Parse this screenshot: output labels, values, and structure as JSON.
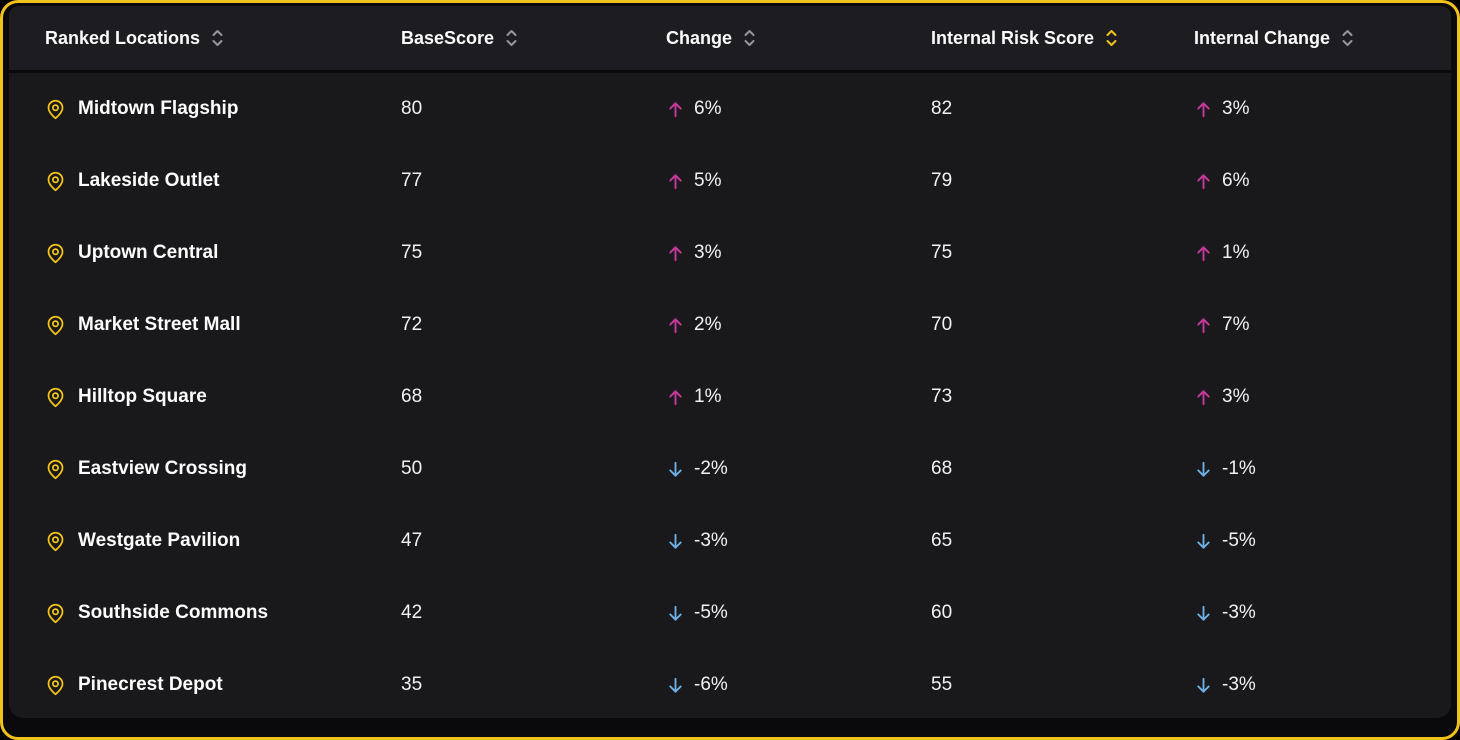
{
  "card": {
    "border_color": "#f2c21c",
    "panel_background": "#19191c",
    "header_background": "#1d1d21"
  },
  "colors": {
    "accent_yellow": "#f5c518",
    "up_arrow_pink": "#c9399e",
    "down_arrow_blue": "#6cb0e4",
    "inactive_sort_gray": "#96969e",
    "text_white": "#f2f2f2"
  },
  "icons": {
    "location_pin": "map-pin-icon",
    "sort": "sort-chevrons-icon",
    "up": "arrow-up-icon",
    "down": "arrow-down-icon"
  },
  "table": {
    "columns": [
      {
        "key": "location",
        "label": "Ranked Locations",
        "sort_active": false
      },
      {
        "key": "base_score",
        "label": "BaseScore",
        "sort_active": false
      },
      {
        "key": "change",
        "label": "Change",
        "sort_active": false
      },
      {
        "key": "internal_risk_score",
        "label": "Internal Risk Score",
        "sort_active": true
      },
      {
        "key": "internal_change",
        "label": "Internal Change",
        "sort_active": false
      }
    ],
    "rows": [
      {
        "location": "Midtown Flagship",
        "base_score": "80",
        "change": "6%",
        "change_dir": "up",
        "internal_risk_score": "82",
        "internal_change": "3%",
        "internal_change_dir": "up"
      },
      {
        "location": "Lakeside Outlet",
        "base_score": "77",
        "change": "5%",
        "change_dir": "up",
        "internal_risk_score": "79",
        "internal_change": "6%",
        "internal_change_dir": "up"
      },
      {
        "location": "Uptown Central",
        "base_score": "75",
        "change": "3%",
        "change_dir": "up",
        "internal_risk_score": "75",
        "internal_change": "1%",
        "internal_change_dir": "up"
      },
      {
        "location": "Market Street Mall",
        "base_score": "72",
        "change": "2%",
        "change_dir": "up",
        "internal_risk_score": "70",
        "internal_change": "7%",
        "internal_change_dir": "up"
      },
      {
        "location": "Hilltop Square",
        "base_score": "68",
        "change": "1%",
        "change_dir": "up",
        "internal_risk_score": "73",
        "internal_change": "3%",
        "internal_change_dir": "up"
      },
      {
        "location": "Eastview Crossing",
        "base_score": "50",
        "change": "-2%",
        "change_dir": "down",
        "internal_risk_score": "68",
        "internal_change": "-1%",
        "internal_change_dir": "down"
      },
      {
        "location": "Westgate Pavilion",
        "base_score": "47",
        "change": "-3%",
        "change_dir": "down",
        "internal_risk_score": "65",
        "internal_change": "-5%",
        "internal_change_dir": "down"
      },
      {
        "location": "Southside Commons",
        "base_score": "42",
        "change": "-5%",
        "change_dir": "down",
        "internal_risk_score": "60",
        "internal_change": "-3%",
        "internal_change_dir": "down"
      },
      {
        "location": "Pinecrest Depot",
        "base_score": "35",
        "change": "-6%",
        "change_dir": "down",
        "internal_risk_score": "55",
        "internal_change": "-3%",
        "internal_change_dir": "down"
      }
    ]
  }
}
